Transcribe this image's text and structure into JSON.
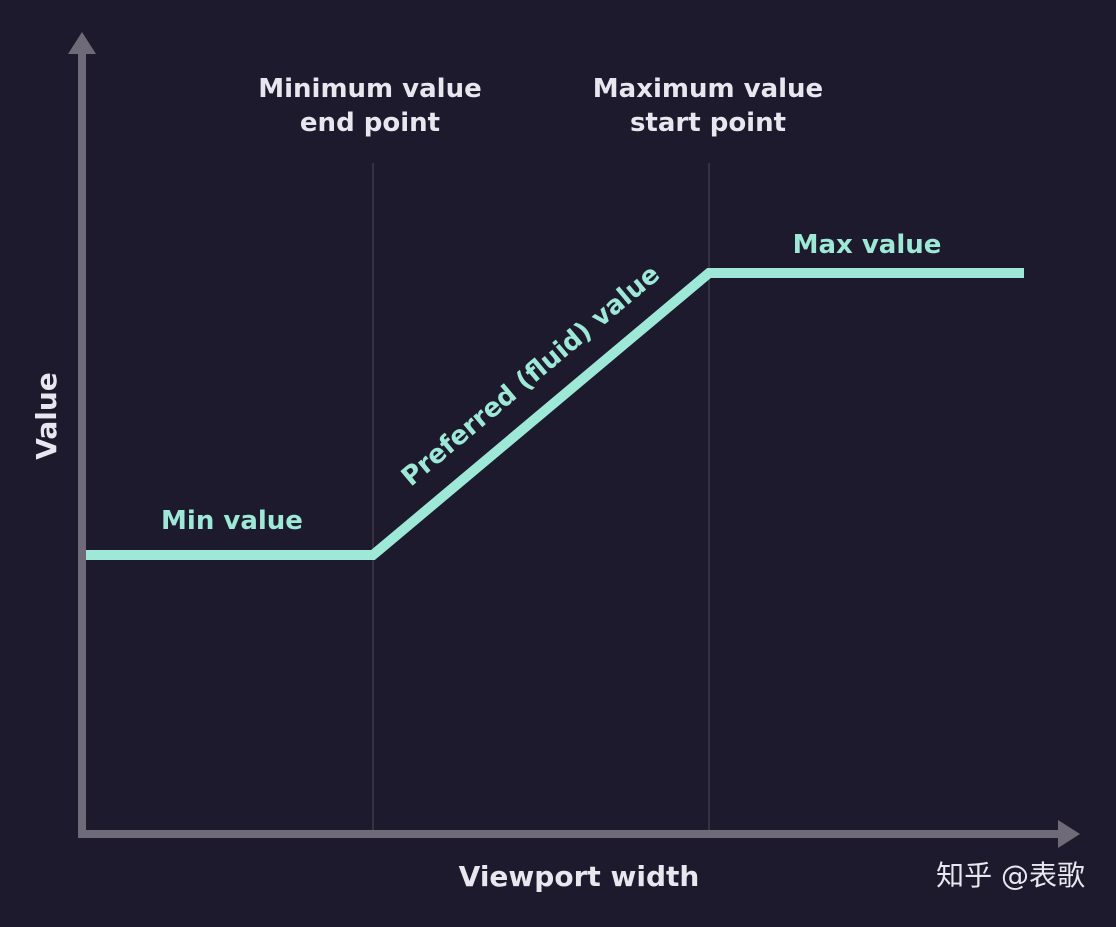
{
  "diagram": {
    "y_axis_label": "Value",
    "x_axis_label": "Viewport width",
    "min_end_label": [
      "Minimum value",
      "end point"
    ],
    "max_start_label": [
      "Maximum value",
      "start point"
    ],
    "min_value_label": "Min value",
    "max_value_label": "Max value",
    "preferred_label": "Preferred (fluid) value",
    "watermark": "知乎 @表歌"
  },
  "colors": {
    "background": "#1e1a2d",
    "axis": "#6e6a78",
    "guide_line": "#3e3a4c",
    "accent": "#9ee8d8",
    "text": "#e8e6ee"
  }
}
